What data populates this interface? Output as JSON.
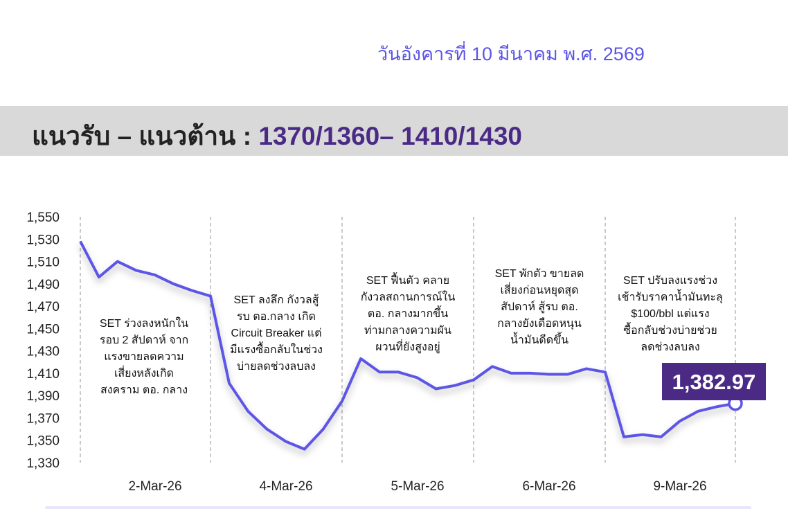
{
  "header": {
    "date": "วันอังคารที่ 10 มีนาคม พ.ศ. 2569",
    "title_label": "แนวรับ – แนวต้าน : ",
    "title_value": "1370/1360– 1410/1430"
  },
  "colors": {
    "line": "#5b55e6",
    "title_value": "#4b2a86",
    "badge": "#4b2a86",
    "band": "#d9d9d9"
  },
  "chart_data": {
    "type": "line",
    "ylim": [
      1330,
      1550
    ],
    "yticks": [
      "1,550",
      "1,530",
      "1,510",
      "1,490",
      "1,470",
      "1,450",
      "1,430",
      "1,410",
      "1,390",
      "1,370",
      "1,350",
      "1,330"
    ],
    "ytick_values": [
      1550,
      1530,
      1510,
      1490,
      1470,
      1450,
      1430,
      1410,
      1390,
      1370,
      1350,
      1330
    ],
    "categories": [
      "2-Mar-26",
      "4-Mar-26",
      "5-Mar-26",
      "6-Mar-26",
      "9-Mar-26"
    ],
    "grid": "vertical dashed separators between days",
    "series": [
      {
        "values": [
          [
            1528,
            1496,
            1510,
            1502,
            1498,
            1490,
            1484,
            1479
          ],
          [
            1401,
            1376,
            1360,
            1349,
            1342,
            1360,
            1385
          ],
          [
            1423,
            1411,
            1411,
            1406,
            1396,
            1399,
            1404
          ],
          [
            1416,
            1410,
            1410,
            1409,
            1409,
            1414,
            1411
          ],
          [
            1353,
            1355,
            1353,
            1367,
            1376,
            1380,
            1382.97
          ]
        ]
      }
    ],
    "last_value_label": "1,382.97",
    "annotations": [
      [
        "SET ร่วงลงหนักใน",
        "รอบ 2 สัปดาห์ จาก",
        "แรงขายลดความ",
        "เสี่ยงหลังเกิด",
        "สงคราม ตอ. กลาง"
      ],
      [
        "SET ลงลึก กังวลสู้",
        "รบ ตอ.กลาง เกิด",
        "Circuit Breaker แต่",
        "มีแรงซื้อกลับในช่วง",
        "บ่ายลดช่วงลบลง"
      ],
      [
        "SET ฟื้นตัว คลาย",
        "กังวลสถานการณ์ใน",
        "ตอ. กลางมากขึ้น",
        "ท่ามกลางความผัน",
        "ผวนที่ยังสูงอยู่"
      ],
      [
        "SET พักตัว ขายลด",
        "เสี่ยงก่อนหยุดสุด",
        "สัปดาห์ สู้รบ ตอ.",
        "กลางยังเดือดหนุน",
        "น้ำมันดีดขึ้น"
      ],
      [
        "SET ปรับลงแรงช่วง",
        "เช้ารับราคาน้ำมันทะลุ",
        "$100/bbl แต่แรง",
        "ซื้อกลับช่วงบ่ายช่วย",
        "ลดช่วงลบลง"
      ]
    ]
  }
}
